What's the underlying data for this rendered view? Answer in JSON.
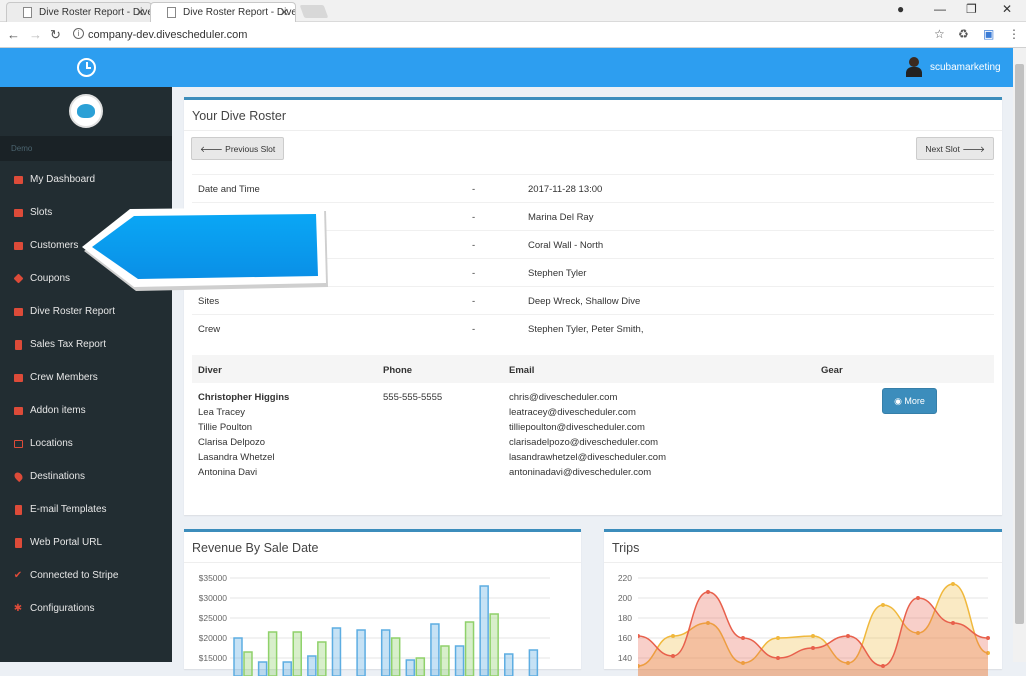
{
  "browser": {
    "tabs": [
      {
        "title": "Dive Roster Report - Dive"
      },
      {
        "title": "Dive Roster Report - Dive"
      }
    ],
    "url": "company-dev.divescheduler.com"
  },
  "header": {
    "username": "scubamarketing",
    "accent": "#2d9ef0"
  },
  "sidebar": {
    "section": "Demo",
    "items": [
      {
        "label": "My Dashboard",
        "icon": "dashboard-icon"
      },
      {
        "label": "Slots",
        "icon": "slots-icon"
      },
      {
        "label": "Customers",
        "icon": "users-icon"
      },
      {
        "label": "Coupons",
        "icon": "tags-icon"
      },
      {
        "label": "Dive Roster Report",
        "icon": "list-icon"
      },
      {
        "label": "Sales Tax Report",
        "icon": "book-icon"
      },
      {
        "label": "Crew Members",
        "icon": "users-icon"
      },
      {
        "label": "Addon items",
        "icon": "briefcase-icon"
      },
      {
        "label": "Locations",
        "icon": "map-icon"
      },
      {
        "label": "Destinations",
        "icon": "map-marker-icon"
      },
      {
        "label": "E-mail Templates",
        "icon": "file-icon"
      },
      {
        "label": "Web Portal URL",
        "icon": "bookmark-icon"
      },
      {
        "label": "Connected to Stripe",
        "icon": "check-icon"
      },
      {
        "label": "Configurations",
        "icon": "gear-icon"
      }
    ]
  },
  "roster": {
    "title": "Your Dive Roster",
    "prev_label": "Previous Slot",
    "next_label": "Next Slot",
    "dash": "-",
    "rows": [
      {
        "label": "Date and Time",
        "value": "2017-11-28 13:00"
      },
      {
        "label": "",
        "value": "Marina Del Ray"
      },
      {
        "label": "",
        "value": "Coral Wall - North"
      },
      {
        "label": "",
        "value": "Stephen Tyler"
      },
      {
        "label": "Sites",
        "value": "Deep Wreck, Shallow Dive"
      },
      {
        "label": "Crew",
        "value": "Stephen Tyler, Peter Smith,"
      }
    ],
    "columns": {
      "diver": "Diver",
      "phone": "Phone",
      "email": "Email",
      "gear": "Gear"
    },
    "divers": [
      {
        "name": "Christopher Higgins",
        "phone": "555-555-5555",
        "email": "chris@divescheduler.com"
      },
      {
        "name": "Lea Tracey",
        "phone": "",
        "email": "leatracey@divescheduler.com"
      },
      {
        "name": "Tillie Poulton",
        "phone": "",
        "email": "tilliepoulton@divescheduler.com"
      },
      {
        "name": "Clarisa Delpozo",
        "phone": "",
        "email": "clarisadelpozo@divescheduler.com"
      },
      {
        "name": "Lasandra Whetzel",
        "phone": "",
        "email": "lasandrawhetzel@divescheduler.com"
      },
      {
        "name": "Antonina Davi",
        "phone": "",
        "email": "antoninadavi@divescheduler.com"
      }
    ],
    "more_label": "More"
  },
  "chart_data": [
    {
      "type": "bar",
      "title": "Revenue By Sale Date",
      "yticks": [
        "$35000",
        "$30000",
        "$25000",
        "$20000",
        "$15000"
      ],
      "ylim": [
        15000,
        35000
      ],
      "grid": true,
      "series": [
        {
          "color": "#5dade2",
          "values": [
            20000,
            14000,
            14000,
            15500,
            22500,
            22000,
            22000,
            14500,
            23500,
            18000,
            33000,
            16000,
            17000
          ]
        },
        {
          "color": "#8fd16a",
          "values": [
            16500,
            21500,
            21500,
            19000,
            20000,
            15000,
            18000,
            24000,
            26000
          ]
        }
      ]
    },
    {
      "type": "area",
      "title": "Trips",
      "yticks": [
        "220",
        "200",
        "180",
        "160",
        "140"
      ],
      "ylim": [
        140,
        220
      ],
      "grid": true,
      "series": [
        {
          "color": "#f0b83c",
          "values": [
            132,
            162,
            175,
            135,
            160,
            162,
            135,
            193,
            165,
            214,
            145
          ]
        },
        {
          "color": "#e8604c",
          "values": [
            162,
            142,
            206,
            160,
            140,
            150,
            162,
            132,
            200,
            175,
            160
          ]
        }
      ]
    }
  ]
}
